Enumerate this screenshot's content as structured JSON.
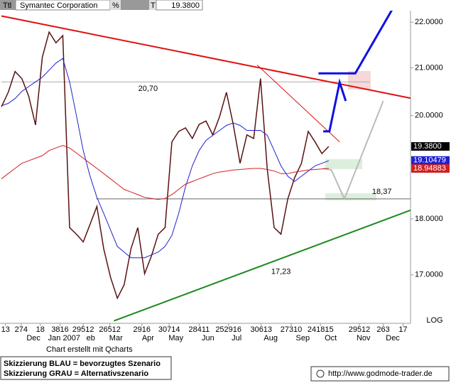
{
  "header": {
    "label": "Ttl",
    "name": "Symantec Corporation",
    "pct": "%",
    "t": "T",
    "price": "19.3800"
  },
  "footer": {
    "credit": "Chart erstellt mit Qcharts",
    "legend": [
      "Skizzierung BLAU = bevorzugtes Szenario",
      "Skizzierung GRAU = Alternativszenario"
    ],
    "site": "http://www.godmode-trader.de"
  },
  "chart_data": {
    "type": "line",
    "log_scale": true,
    "scale_note": "LOG",
    "xlim": [
      0,
      60
    ],
    "ylim": [
      16.18,
      22.26
    ],
    "yticks": [
      {
        "value": 22,
        "label": "22.0000"
      },
      {
        "value": 21,
        "label": "21.0000"
      },
      {
        "value": 20,
        "label": "20.0000"
      },
      {
        "value": 18,
        "label": "18.0000"
      },
      {
        "value": 17,
        "label": "17.0000"
      }
    ],
    "xticks": [
      {
        "value": 0.6,
        "label": "13"
      },
      {
        "value": 2.9,
        "label": "274"
      },
      {
        "value": 5.7,
        "label": "18"
      },
      {
        "value": 8.6,
        "label": "3816"
      },
      {
        "value": 12.0,
        "label": "29512"
      },
      {
        "value": 15.9,
        "label": "26512"
      },
      {
        "value": 20.6,
        "label": "2916"
      },
      {
        "value": 24.6,
        "label": "30714"
      },
      {
        "value": 29.0,
        "label": "28411"
      },
      {
        "value": 33.3,
        "label": "252916"
      },
      {
        "value": 38.1,
        "label": "30613"
      },
      {
        "value": 42.5,
        "label": "27310"
      },
      {
        "value": 46.8,
        "label": "241815"
      },
      {
        "value": 52.5,
        "label": "29512"
      },
      {
        "value": 56.0,
        "label": "263"
      },
      {
        "value": 58.9,
        "label": "17"
      }
    ],
    "x_month_ticks": [
      {
        "value": 4.7,
        "label": "Dec"
      },
      {
        "value": 9.2,
        "label": "Jan 2007"
      },
      {
        "value": 13.1,
        "label": "eb"
      },
      {
        "value": 16.8,
        "label": "Mar"
      },
      {
        "value": 21.5,
        "label": "Apr"
      },
      {
        "value": 25.6,
        "label": "May"
      },
      {
        "value": 30.3,
        "label": "Jun"
      },
      {
        "value": 34.5,
        "label": "Jul"
      },
      {
        "value": 39.5,
        "label": "Aug"
      },
      {
        "value": 44.2,
        "label": "Sep"
      },
      {
        "value": 48.3,
        "label": "Oct"
      },
      {
        "value": 53.1,
        "label": "Nov"
      },
      {
        "value": 57.4,
        "label": "Dec"
      }
    ],
    "x": [
      0,
      1,
      2,
      3,
      4,
      5,
      6,
      7,
      8,
      9,
      10,
      11,
      12,
      13,
      14,
      15,
      16,
      17,
      18,
      19,
      20,
      21,
      22,
      23,
      24,
      25,
      26,
      27,
      28,
      29,
      30,
      31,
      32,
      33,
      34,
      35,
      36,
      37,
      38,
      39,
      40,
      41,
      42,
      43,
      44,
      45,
      46,
      47,
      48
    ],
    "series": [
      {
        "color": "#5a1010",
        "width": 1.5,
        "values": [
          20.18,
          20.48,
          20.92,
          20.77,
          20.4,
          19.81,
          21.23,
          21.78,
          21.54,
          21.7,
          17.84,
          17.72,
          17.58,
          17.9,
          18.23,
          17.46,
          16.96,
          16.6,
          16.83,
          17.46,
          17.84,
          17.02,
          17.33,
          17.72,
          17.84,
          19.47,
          19.68,
          19.75,
          19.54,
          19.82,
          19.89,
          19.61,
          19.98,
          20.48,
          19.82,
          19.05,
          19.61,
          19.54,
          20.77,
          18.92,
          17.84,
          17.72,
          18.37,
          18.77,
          19.05,
          19.68,
          19.47,
          19.24,
          19.38
        ]
      },
      {
        "color": "#2020d0",
        "width": 1,
        "values": [
          20.2,
          20.25,
          20.35,
          20.5,
          20.6,
          20.7,
          20.8,
          20.95,
          21.1,
          21.2,
          20.7,
          20.0,
          19.3,
          18.8,
          18.4,
          18.1,
          17.8,
          17.5,
          17.4,
          17.3,
          17.3,
          17.3,
          17.35,
          17.4,
          17.5,
          17.7,
          18.1,
          18.6,
          19.0,
          19.3,
          19.5,
          19.6,
          19.7,
          19.8,
          19.85,
          19.8,
          19.7,
          19.7,
          19.7,
          19.6,
          19.3,
          19.0,
          18.8,
          18.7,
          18.8,
          18.9,
          19.0,
          19.05,
          19.1
        ]
      },
      {
        "color": "#d02020",
        "width": 1,
        "values": [
          18.75,
          18.85,
          18.95,
          19.05,
          19.1,
          19.15,
          19.2,
          19.3,
          19.35,
          19.4,
          19.35,
          19.25,
          19.15,
          19.05,
          18.95,
          18.85,
          18.75,
          18.65,
          18.55,
          18.5,
          18.45,
          18.4,
          18.38,
          18.36,
          18.38,
          18.45,
          18.55,
          18.65,
          18.7,
          18.75,
          18.8,
          18.85,
          18.88,
          18.9,
          18.92,
          18.93,
          18.94,
          18.95,
          18.95,
          18.93,
          18.9,
          18.85,
          18.85,
          18.88,
          18.9,
          18.92,
          18.93,
          18.94,
          18.95
        ]
      }
    ],
    "price_tags": [
      {
        "value": 19.38,
        "label": "19.3800",
        "color": "#000000"
      },
      {
        "value": 19.10479,
        "label": "19.10479",
        "color": "#2020d0"
      },
      {
        "value": 18.94883,
        "label": "18.94883",
        "color": "#d02020"
      }
    ],
    "levels": [
      {
        "value": 20.7,
        "color": "#aaaaaa",
        "x": [
          0,
          54
        ]
      },
      {
        "value": 18.37,
        "color": "#666666",
        "x": [
          13.9,
          60
        ]
      }
    ],
    "overlays": [
      {
        "color": "#e01010",
        "width": 2,
        "x": [
          0,
          60
        ],
        "y": [
          22.14,
          20.36
        ]
      },
      {
        "color": "#1a8a1a",
        "width": 2,
        "x": [
          16.5,
          60
        ],
        "y": [
          16.22,
          18.16
        ]
      },
      {
        "color": "#e01010",
        "width": 1,
        "x": [
          37.5,
          49.6
        ],
        "y": [
          21.06,
          19.47
        ]
      },
      {
        "color": "#1010e0",
        "width": 3,
        "x": [
          47.2,
          48.1,
          49.6,
          50.5
        ],
        "y": [
          19.68,
          19.68,
          20.69,
          20.3
        ]
      },
      {
        "color": "#1010e0",
        "width": 3,
        "x": [
          46.5,
          51.9,
          58.1
        ],
        "y": [
          20.88,
          20.88,
          22.5
        ]
      },
      {
        "color": "#bbbbbb",
        "width": 2,
        "x": [
          47.2,
          48.4,
          50.3,
          56.0
        ],
        "y": [
          18.95,
          18.92,
          18.37,
          20.3
        ]
      }
    ],
    "annotations": [
      {
        "text": "20,70",
        "x": 21.5,
        "y": 20.55
      },
      {
        "text": "18,37",
        "x": 55.8,
        "y": 18.5
      },
      {
        "text": "17,23",
        "x": 41.0,
        "y": 17.05
      }
    ]
  }
}
